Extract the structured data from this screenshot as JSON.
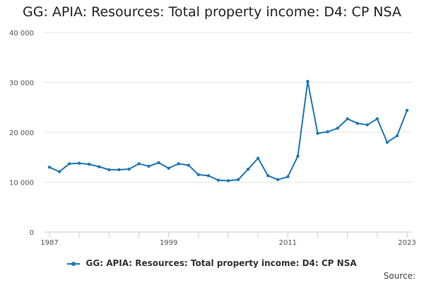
{
  "chart_data": {
    "type": "line",
    "title": "GG: APIA: Resources: Total property income: D4: CP NSA",
    "xlabel": "",
    "ylabel": "",
    "x": [
      1987,
      1988,
      1989,
      1990,
      1991,
      1992,
      1993,
      1994,
      1995,
      1996,
      1997,
      1998,
      1999,
      2000,
      2001,
      2002,
      2003,
      2004,
      2005,
      2006,
      2007,
      2008,
      2009,
      2010,
      2011,
      2012,
      2013,
      2014,
      2015,
      2016,
      2017,
      2018,
      2019,
      2020,
      2021,
      2022,
      2023
    ],
    "series": [
      {
        "name": "GG: APIA: Resources: Total property income: D4: CP NSA",
        "color": "#1f77b4",
        "values": [
          13000,
          12100,
          13700,
          13800,
          13600,
          13100,
          12500,
          12500,
          12600,
          13700,
          13200,
          13900,
          12800,
          13700,
          13400,
          11500,
          11300,
          10400,
          10300,
          10500,
          12600,
          14800,
          11300,
          10500,
          11100,
          15200,
          30200,
          19800,
          20100,
          20800,
          22700,
          21800,
          21500,
          22700,
          18000,
          19300,
          24400
        ]
      }
    ],
    "xlim": [
      1987,
      2023
    ],
    "ylim": [
      0,
      40000
    ],
    "yticks": [
      0,
      10000,
      20000,
      30000,
      40000
    ],
    "ytick_labels": [
      "0",
      "10 000",
      "20 000",
      "30 000",
      "40 000"
    ],
    "xticks": [
      1987,
      1999,
      2011,
      2023
    ],
    "xtick_labels": [
      "1987",
      "1999",
      "2011",
      "2023"
    ],
    "grid": "horizontal",
    "legend": "bottom"
  },
  "source_label": "Source:"
}
